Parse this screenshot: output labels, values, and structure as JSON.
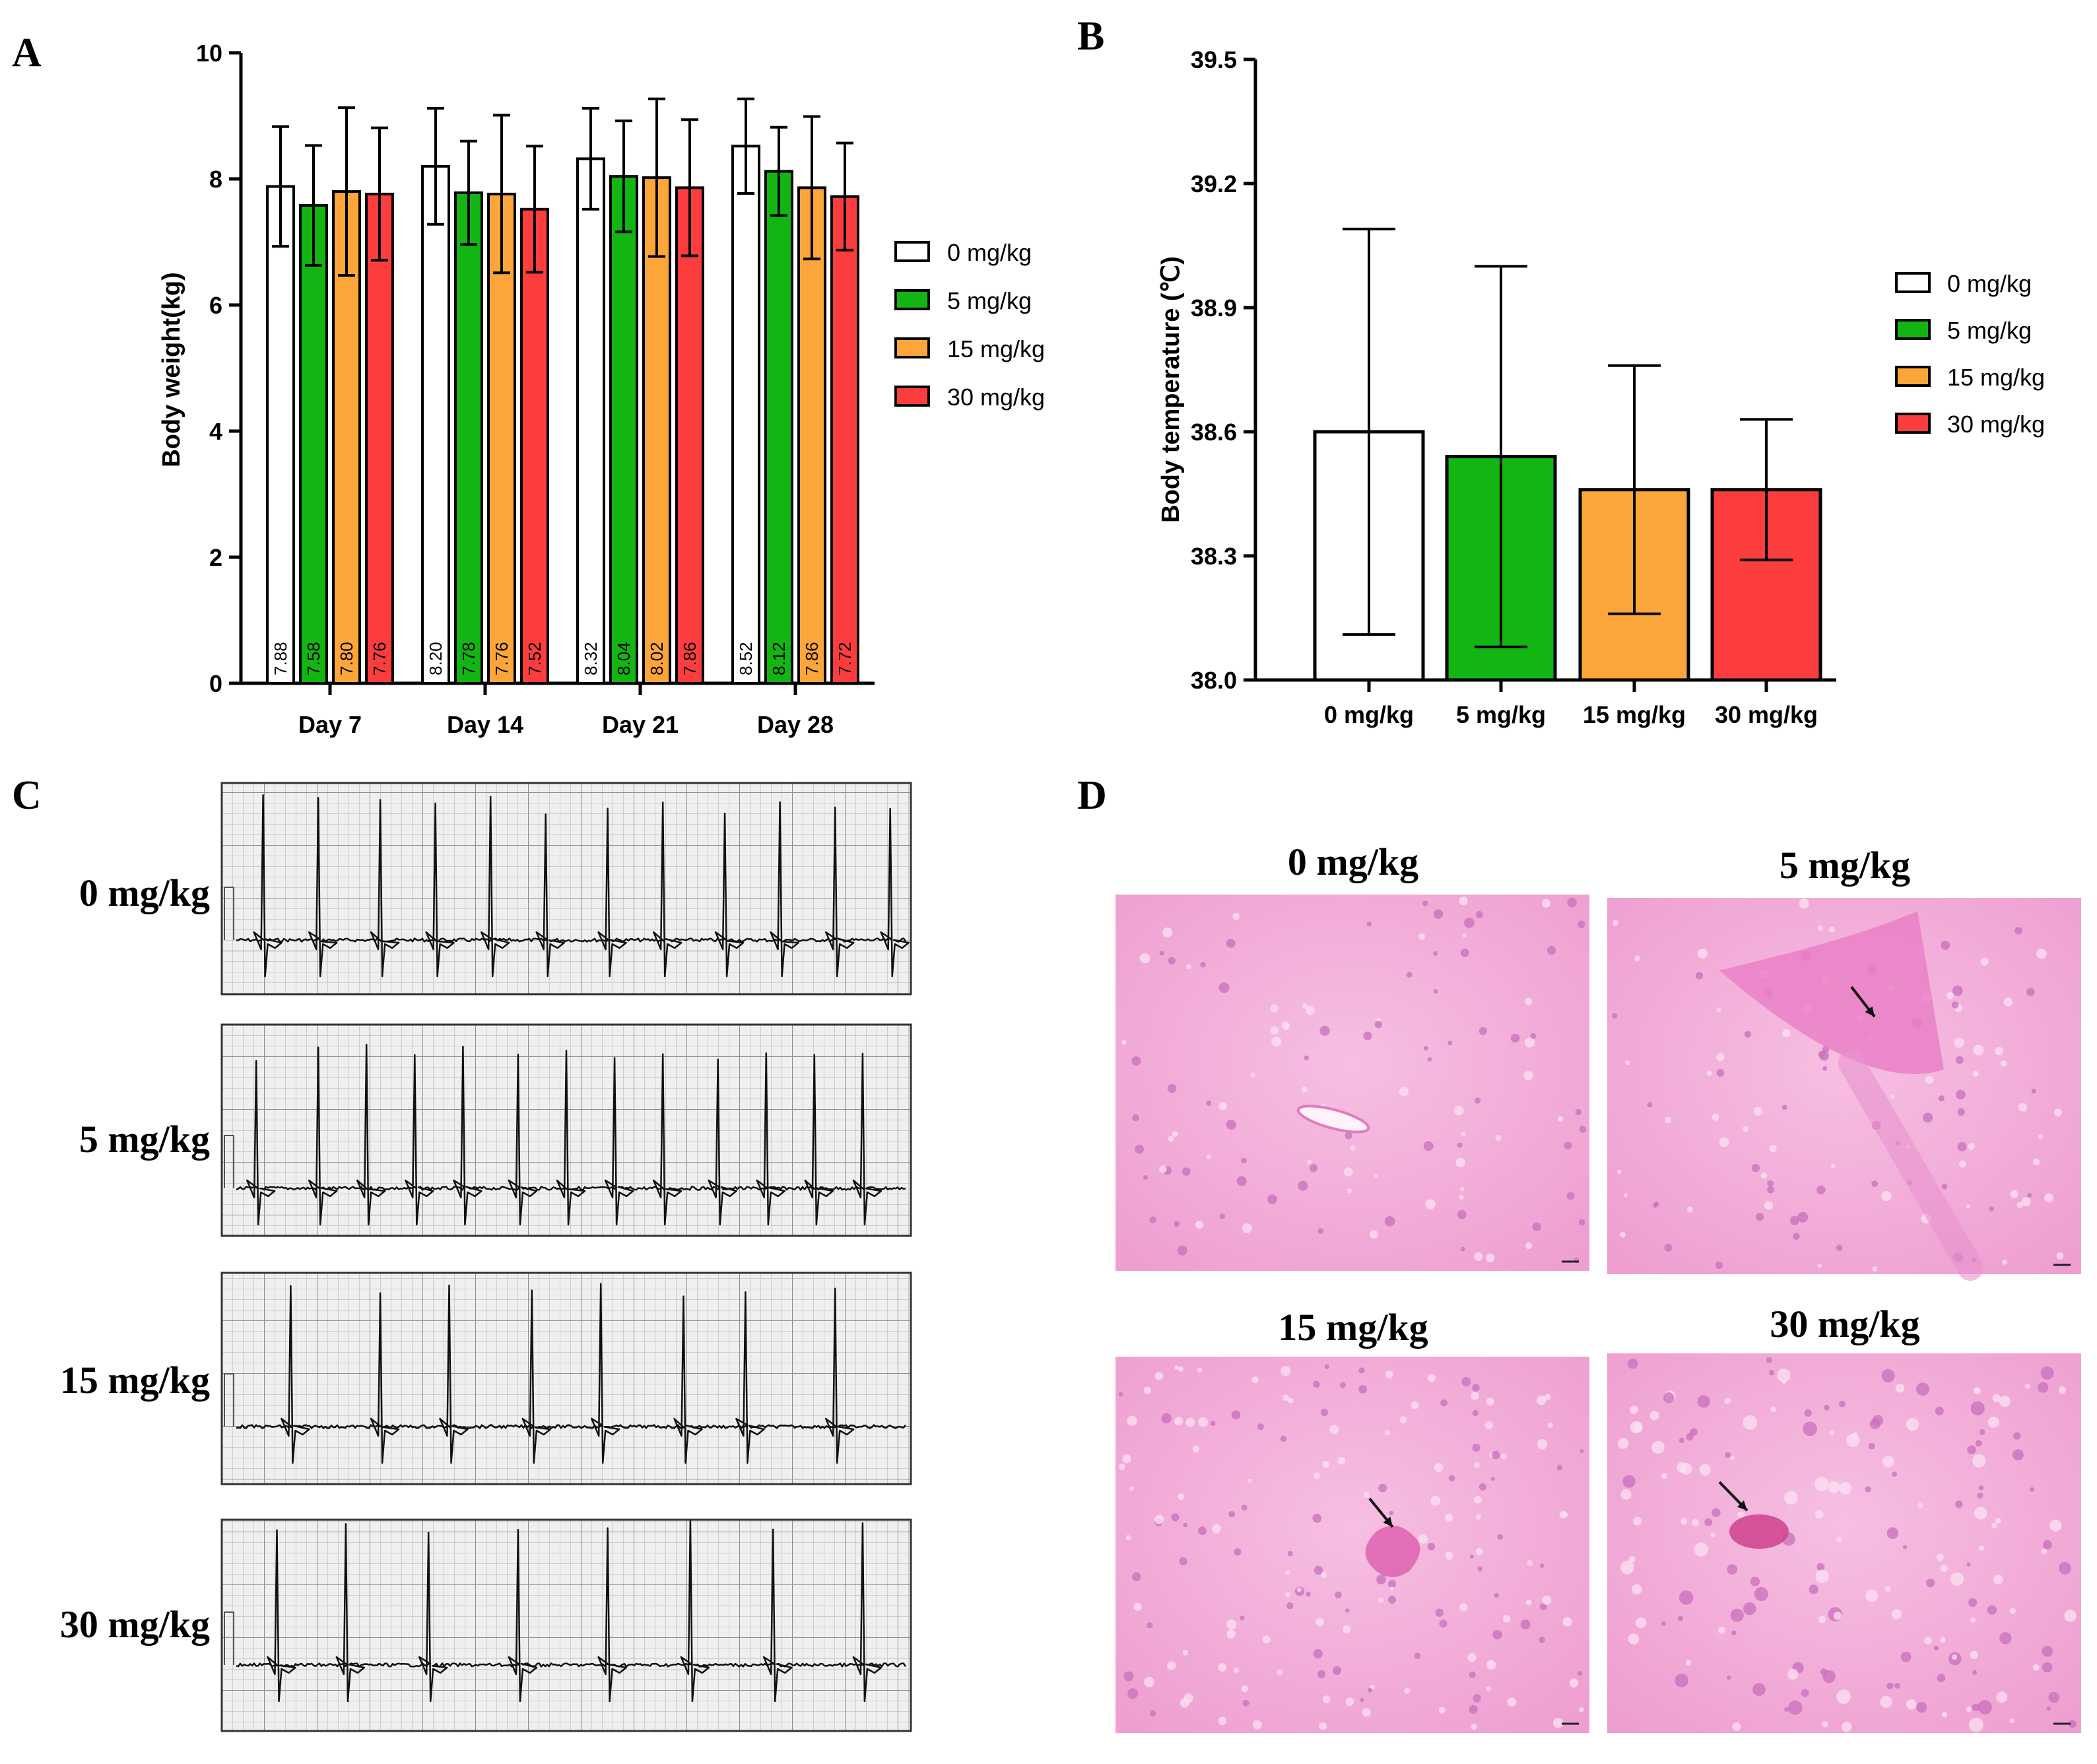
{
  "panels": {
    "A": "A",
    "B": "B",
    "C": "C",
    "D": "D"
  },
  "colors": {
    "g0": "#ffffff",
    "g5": "#12b512",
    "g15": "#fca53a",
    "g30": "#fc3d3d",
    "axis": "#000000",
    "ecgBg": "#efefef",
    "ecgGrid": "#c4c4c4",
    "ecgGridMajor": "#8f8f8f",
    "histo": "#f2a8d6"
  },
  "chart_data": [
    {
      "type": "bar",
      "panel": "A",
      "title": "",
      "xlabel": "",
      "ylabel": "Body weight(kg)",
      "ylim": [
        0,
        10
      ],
      "yticks": [
        "0",
        "2",
        "4",
        "6",
        "8",
        "10"
      ],
      "categories": [
        "Day 7",
        "Day 14",
        "Day 21",
        "Day 28"
      ],
      "series": [
        {
          "name": "0 mg/kg",
          "color": "#ffffff",
          "values": [
            7.88,
            8.2,
            8.32,
            8.52
          ],
          "labels": [
            "7.88",
            "8.20",
            "8.32",
            "8.52"
          ],
          "err": [
            0.95,
            0.92,
            0.8,
            0.75
          ]
        },
        {
          "name": "5 mg/kg",
          "color": "#12b512",
          "values": [
            7.58,
            7.78,
            8.04,
            8.12
          ],
          "labels": [
            "7.58",
            "7.78",
            "8.04",
            "8.12"
          ],
          "err": [
            0.95,
            0.82,
            0.88,
            0.7
          ]
        },
        {
          "name": "15 mg/kg",
          "color": "#fca53a",
          "values": [
            7.8,
            7.76,
            8.02,
            7.86
          ],
          "labels": [
            "7.80",
            "7.76",
            "8.02",
            "7.86"
          ],
          "err": [
            1.33,
            1.25,
            1.25,
            1.13
          ]
        },
        {
          "name": "30 mg/kg",
          "color": "#fc3d3d",
          "values": [
            7.76,
            7.52,
            7.86,
            7.72
          ],
          "labels": [
            "7.76",
            "7.52",
            "7.86",
            "7.72"
          ],
          "err": [
            1.05,
            1.0,
            1.08,
            0.85
          ]
        }
      ],
      "legend": [
        "0 mg/kg",
        "5 mg/kg",
        "15 mg/kg",
        "30 mg/kg"
      ],
      "legend_position": "right"
    },
    {
      "type": "bar",
      "panel": "B",
      "title": "",
      "xlabel": "",
      "ylabel": "Body temperature (℃)",
      "ylim": [
        38.0,
        39.5
      ],
      "yticks": [
        "38.0",
        "38.3",
        "38.6",
        "38.9",
        "39.2",
        "39.5"
      ],
      "categories": [
        "0 mg/kg",
        "5 mg/kg",
        "15 mg/kg",
        "30 mg/kg"
      ],
      "colors": [
        "#ffffff",
        "#12b512",
        "#fca53a",
        "#fc3d3d"
      ],
      "values": [
        38.6,
        38.54,
        38.46,
        38.46
      ],
      "err": [
        0.49,
        0.46,
        0.3,
        0.17
      ],
      "legend": [
        "0 mg/kg",
        "5 mg/kg",
        "15 mg/kg",
        "30 mg/kg"
      ],
      "legend_position": "right"
    }
  ],
  "ecg": {
    "labels": [
      "0 mg/kg",
      "5 mg/kg",
      "15 mg/kg",
      "30 mg/kg"
    ],
    "beats": [
      [
        0.06,
        0.14,
        0.23,
        0.31,
        0.39,
        0.47,
        0.56,
        0.64,
        0.73,
        0.81,
        0.89,
        0.97
      ],
      [
        0.05,
        0.14,
        0.21,
        0.28,
        0.35,
        0.43,
        0.5,
        0.57,
        0.64,
        0.72,
        0.79,
        0.86,
        0.93
      ],
      [
        0.1,
        0.23,
        0.33,
        0.45,
        0.55,
        0.67,
        0.76,
        0.89
      ],
      [
        0.08,
        0.18,
        0.3,
        0.43,
        0.56,
        0.68,
        0.8,
        0.93
      ]
    ]
  },
  "histology": {
    "labels": [
      "0 mg/kg",
      "5 mg/kg",
      "15 mg/kg",
      "30 mg/kg"
    ]
  }
}
